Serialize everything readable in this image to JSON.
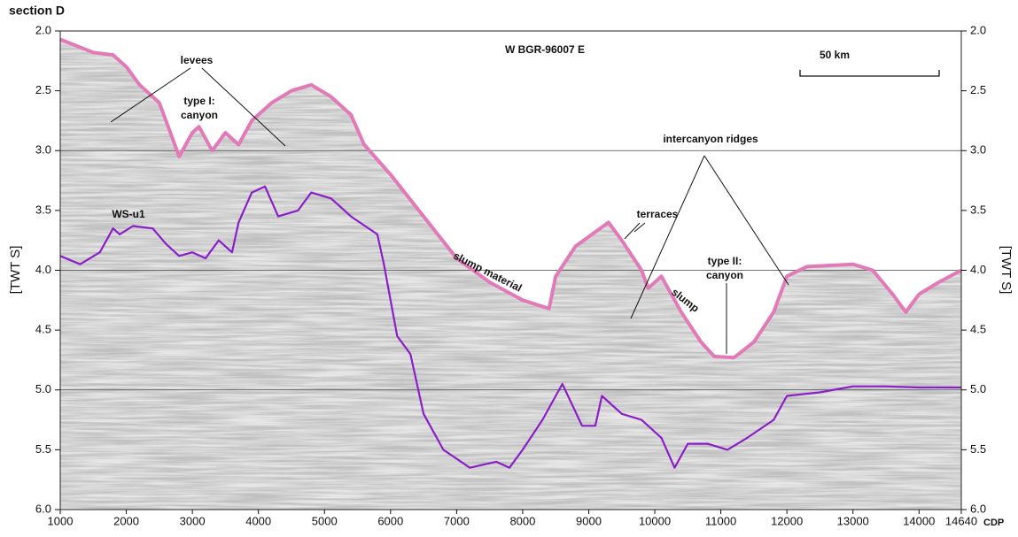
{
  "chart_data": {
    "type": "line",
    "title": "section D",
    "subtitle": "W BGR-96007 E",
    "x_label": "CDP",
    "y_label": "[TWT S]",
    "y2_label": "[TWT S]",
    "scale_label": "50 km",
    "annotations": [
      [
        "levees"
      ],
      [
        "type I:",
        "canyon"
      ],
      [
        "intercanyon ridges"
      ],
      [
        "terraces"
      ],
      [
        "slump material"
      ],
      [
        "slump"
      ],
      [
        "type II:",
        "canyon"
      ],
      [
        "WS-u1"
      ]
    ],
    "xlim": [
      1000,
      14640
    ],
    "xticks": [
      1000,
      2000,
      3000,
      4000,
      5000,
      6000,
      7000,
      8000,
      9000,
      10000,
      11000,
      12000,
      13000,
      14000,
      14640
    ],
    "ylim": [
      6,
      2
    ],
    "yticks": [
      {
        "value": 2,
        "label": "2.0"
      },
      {
        "value": 2.5,
        "label": "2.5"
      },
      {
        "value": 3,
        "label": "3.0"
      },
      {
        "value": 3.5,
        "label": "3.5"
      },
      {
        "value": 4,
        "label": "4.0"
      },
      {
        "value": 4.5,
        "label": "4.5"
      },
      {
        "value": 5,
        "label": "5.0"
      },
      {
        "value": 5.5,
        "label": "5.5"
      },
      {
        "value": 6,
        "label": "6.0"
      }
    ],
    "y2lim": [
      6,
      2
    ],
    "y2ticks": [
      {
        "value": 2,
        "label": "2.0"
      },
      {
        "value": 2.5,
        "label": "2.5"
      },
      {
        "value": 3,
        "label": "3.0"
      },
      {
        "value": 3.5,
        "label": "3.5"
      },
      {
        "value": 4,
        "label": "4.0"
      },
      {
        "value": 4.5,
        "label": "4.5"
      },
      {
        "value": 5,
        "label": "5.0"
      },
      {
        "value": 5.5,
        "label": "5.5"
      },
      {
        "value": 6,
        "label": "6.0"
      }
    ],
    "grid": [
      3,
      4,
      5
    ],
    "series": [
      {
        "color": "#e27ab8",
        "x": [
          1000,
          1500,
          1800,
          2000,
          2200,
          2500,
          2700,
          2800,
          3000,
          3100,
          3300,
          3500,
          3700,
          3900,
          4200,
          4500,
          4800,
          5100,
          5400,
          5600,
          6000,
          6500,
          7000,
          7500,
          8000,
          8400,
          8500,
          8800,
          9300,
          9500,
          9800,
          9900,
          10100,
          10400,
          10700,
          10900,
          11200,
          11500,
          11800,
          12000,
          12300,
          13000,
          13300,
          13600,
          13800,
          14000,
          14300,
          14640
        ],
        "values": [
          2.07,
          2.18,
          2.2,
          2.3,
          2.45,
          2.6,
          2.9,
          3.05,
          2.85,
          2.8,
          3.0,
          2.85,
          2.95,
          2.75,
          2.6,
          2.5,
          2.45,
          2.55,
          2.7,
          2.95,
          3.2,
          3.55,
          3.9,
          4.1,
          4.25,
          4.32,
          4.05,
          3.8,
          3.6,
          3.75,
          4.0,
          4.15,
          4.05,
          4.35,
          4.6,
          4.72,
          4.73,
          4.6,
          4.35,
          4.05,
          3.97,
          3.95,
          4.0,
          4.2,
          4.35,
          4.2,
          4.1,
          4.0
        ]
      },
      {
        "color": "#8a1fc7",
        "x": [
          1000,
          1300,
          1600,
          1800,
          1900,
          2100,
          2400,
          2600,
          2800,
          3000,
          3200,
          3400,
          3600,
          3700,
          3900,
          4100,
          4300,
          4600,
          4800,
          5100,
          5400,
          5800,
          5900,
          6100,
          6300,
          6500,
          6800,
          7200,
          7600,
          7800,
          8000,
          8300,
          8600,
          8900,
          9100,
          9200,
          9500,
          9800,
          10100,
          10300,
          10500,
          10800,
          11100,
          11400,
          11800,
          12000,
          12500,
          13000,
          13500,
          14000,
          14640
        ],
        "values": [
          3.88,
          3.95,
          3.85,
          3.65,
          3.7,
          3.63,
          3.65,
          3.78,
          3.88,
          3.85,
          3.9,
          3.75,
          3.85,
          3.6,
          3.35,
          3.3,
          3.55,
          3.5,
          3.35,
          3.4,
          3.55,
          3.7,
          3.95,
          4.55,
          4.7,
          5.2,
          5.5,
          5.65,
          5.6,
          5.65,
          5.5,
          5.25,
          4.95,
          5.3,
          5.3,
          5.05,
          5.2,
          5.25,
          5.4,
          5.65,
          5.45,
          5.45,
          5.5,
          5.4,
          5.25,
          5.05,
          5.02,
          4.97,
          4.97,
          4.98,
          4.98
        ]
      }
    ]
  }
}
